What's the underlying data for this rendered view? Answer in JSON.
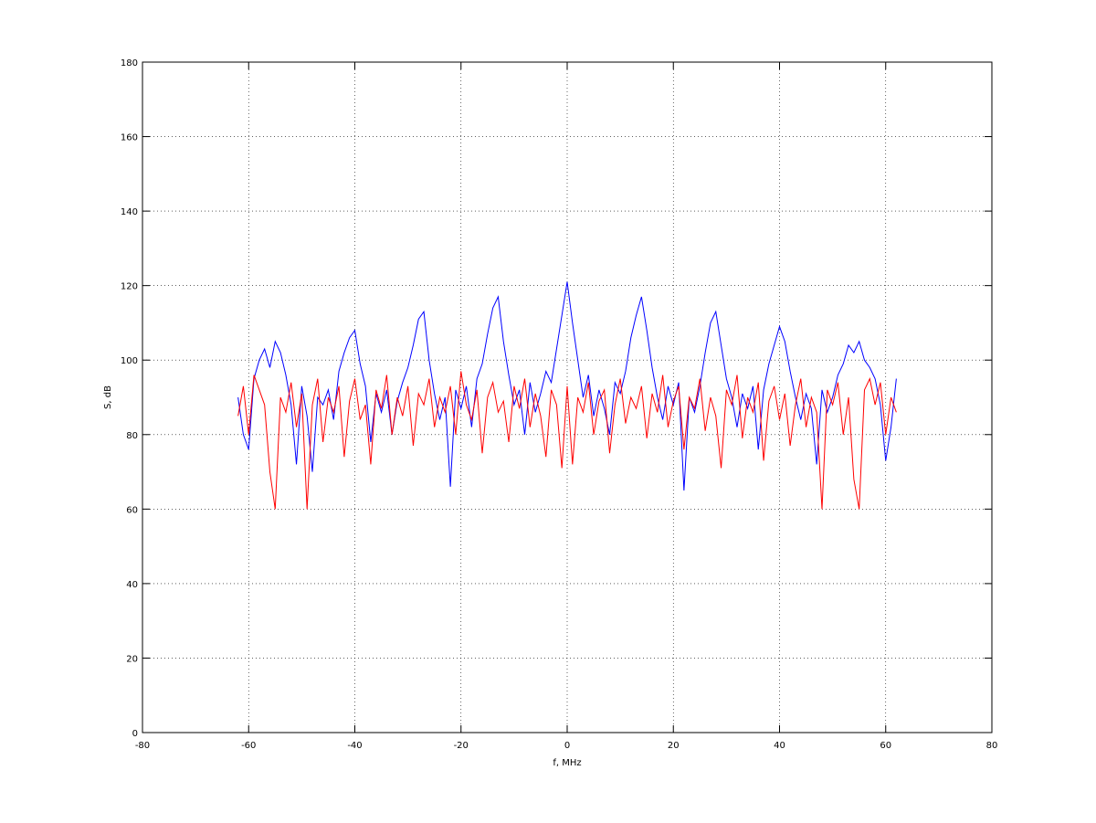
{
  "chart_data": {
    "type": "line",
    "xlabel": "f, MHz",
    "ylabel": "S, dB",
    "x": [
      -62,
      -61,
      -60,
      -59,
      -58,
      -57,
      -56,
      -55,
      -54,
      -53,
      -52,
      -51,
      -50,
      -49,
      -48,
      -47,
      -46,
      -45,
      -44,
      -43,
      -42,
      -41,
      -40,
      -39,
      -38,
      -37,
      -36,
      -35,
      -34,
      -33,
      -32,
      -31,
      -30,
      -29,
      -28,
      -27,
      -26,
      -25,
      -24,
      -23,
      -22,
      -21,
      -20,
      -19,
      -18,
      -17,
      -16,
      -15,
      -14,
      -13,
      -12,
      -11,
      -10,
      -9,
      -8,
      -7,
      -6,
      -5,
      -4,
      -3,
      -2,
      -1,
      0,
      1,
      2,
      3,
      4,
      5,
      6,
      7,
      8,
      9,
      10,
      11,
      12,
      13,
      14,
      15,
      16,
      17,
      18,
      19,
      20,
      21,
      22,
      23,
      24,
      25,
      26,
      27,
      28,
      29,
      30,
      31,
      32,
      33,
      34,
      35,
      36,
      37,
      38,
      39,
      40,
      41,
      42,
      43,
      44,
      45,
      46,
      47,
      48,
      49,
      50,
      51,
      52,
      53,
      54,
      55,
      56,
      57,
      58,
      59,
      60,
      61,
      62
    ],
    "series": [
      {
        "color": "#0000ff",
        "values": [
          90,
          80,
          76,
          95,
          100,
          103,
          98,
          105,
          102,
          96,
          88,
          72,
          93,
          85,
          70,
          90,
          88,
          92,
          84,
          97,
          102,
          106,
          108,
          99,
          93,
          78,
          91,
          86,
          92,
          80,
          89,
          94,
          98,
          104,
          111,
          113,
          100,
          91,
          84,
          90,
          66,
          92,
          87,
          93,
          82,
          95,
          99,
          107,
          114,
          117,
          105,
          96,
          88,
          92,
          80,
          94,
          86,
          91,
          97,
          94,
          103,
          112,
          121,
          110,
          100,
          90,
          96,
          85,
          92,
          87,
          80,
          94,
          91,
          97,
          106,
          112,
          117,
          108,
          98,
          90,
          84,
          93,
          88,
          94,
          65,
          90,
          86,
          93,
          102,
          110,
          113,
          104,
          95,
          90,
          82,
          91,
          87,
          93,
          76,
          92,
          99,
          104,
          109,
          105,
          97,
          90,
          84,
          91,
          87,
          72,
          92,
          86,
          90,
          96,
          99,
          104,
          102,
          105,
          100,
          98,
          95,
          88,
          73,
          82,
          95
        ]
      },
      {
        "color": "#ff0000",
        "values": [
          85,
          93,
          80,
          96,
          92,
          88,
          70,
          60,
          90,
          86,
          94,
          82,
          91,
          60,
          88,
          95,
          78,
          90,
          86,
          93,
          74,
          89,
          95,
          84,
          88,
          72,
          92,
          87,
          96,
          80,
          90,
          85,
          93,
          77,
          91,
          88,
          95,
          82,
          90,
          86,
          93,
          80,
          97,
          88,
          84,
          92,
          75,
          90,
          94,
          86,
          89,
          78,
          93,
          87,
          95,
          82,
          91,
          85,
          74,
          92,
          88,
          71,
          93,
          72,
          90,
          86,
          94,
          80,
          89,
          92,
          75,
          88,
          95,
          83,
          90,
          87,
          93,
          79,
          91,
          86,
          96,
          82,
          89,
          93,
          76,
          90,
          87,
          95,
          81,
          90,
          85,
          71,
          92,
          88,
          96,
          79,
          90,
          86,
          94,
          73,
          89,
          93,
          84,
          91,
          77,
          88,
          95,
          82,
          90,
          86,
          60,
          92,
          88,
          94,
          80,
          90,
          68,
          60,
          92,
          95,
          88,
          94,
          80,
          90,
          86
        ]
      }
    ],
    "xlim": [
      -80,
      80
    ],
    "ylim": [
      0,
      180
    ],
    "xticks": [
      -80,
      -60,
      -40,
      -20,
      0,
      20,
      40,
      60,
      80
    ],
    "yticks": [
      0,
      20,
      40,
      60,
      80,
      100,
      120,
      140,
      160,
      180
    ],
    "grid": true
  }
}
